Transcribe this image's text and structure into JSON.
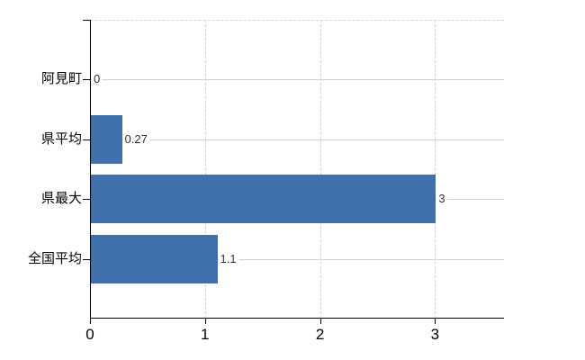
{
  "chart_data": {
    "type": "bar",
    "orientation": "horizontal",
    "title": "",
    "xlabel": "",
    "ylabel": "",
    "categories": [
      "阿見町",
      "県平均",
      "県最大",
      "全国平均"
    ],
    "values": [
      0,
      0.27,
      3,
      1.1
    ],
    "data_labels": [
      "0",
      "0.27",
      "3",
      "1.1"
    ],
    "xlim": [
      0,
      3.6
    ],
    "x_tick_values": [
      0,
      1,
      2,
      3
    ],
    "x_tick_labels": [
      "0",
      "1",
      "2",
      "3"
    ],
    "legend": "none",
    "grid": "on",
    "colors": {
      "bar": "#3f6fac",
      "axis": "#000000",
      "h_gridline": "#ccd5cc",
      "v_gridline": "#d6d2d6",
      "top_border": "#d6d2d6",
      "category_label": "#000000",
      "tick_label": "#000000",
      "data_label": "#333333",
      "background": "#ffffff"
    }
  }
}
